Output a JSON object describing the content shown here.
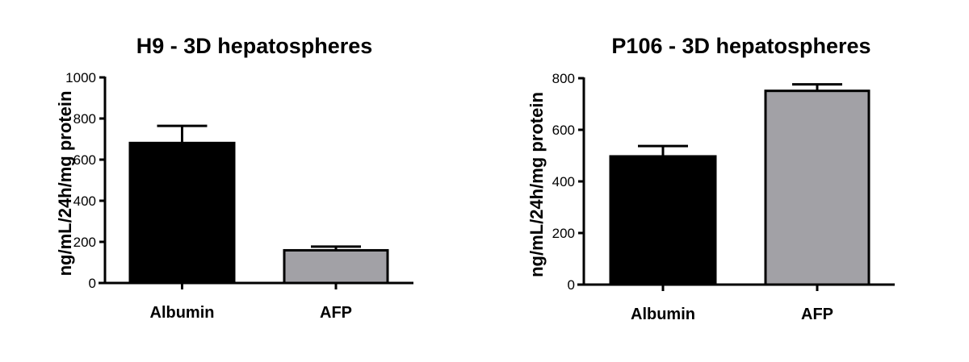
{
  "chart_data": [
    {
      "type": "bar",
      "title": "H9 - 3D hepatospheres",
      "xlabel": "",
      "ylabel": "ng/mL/24h/mg protein",
      "ylim": [
        0,
        1000
      ],
      "yticks": [
        0,
        200,
        400,
        600,
        800,
        1000
      ],
      "categories": [
        "Albumin",
        "AFP"
      ],
      "values": [
        681,
        159
      ],
      "error_upper": [
        764,
        177
      ],
      "colors": [
        "#000000",
        "#a2a1a6"
      ],
      "grid": false
    },
    {
      "type": "bar",
      "title": "P106 - 3D hepatospheres",
      "xlabel": "",
      "ylabel": "ng/mL/24h/mg protein",
      "ylim": [
        0,
        800
      ],
      "yticks": [
        0,
        200,
        400,
        600,
        800
      ],
      "categories": [
        "Albumin",
        "AFP"
      ],
      "values": [
        497,
        751
      ],
      "error_upper": [
        537,
        776
      ],
      "colors": [
        "#000000",
        "#a2a1a6"
      ],
      "grid": false
    }
  ]
}
